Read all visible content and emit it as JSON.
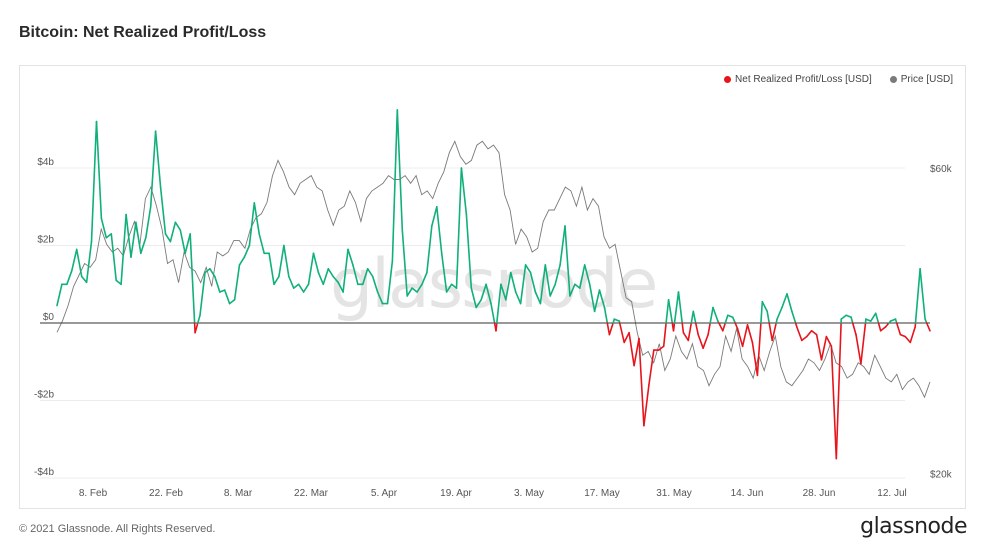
{
  "title": "Bitcoin: Net Realized Profit/Loss",
  "legend": {
    "series1": "Net Realized Profit/Loss [USD]",
    "series2": "Price [USD]"
  },
  "colors": {
    "profit": "#10b07a",
    "loss": "#e8141c",
    "price": "#7a7a7a",
    "zero_line": "#333333",
    "grid": "#ececec"
  },
  "watermark": "glassnode",
  "footer": {
    "copyright": "© 2021 Glassnode. All Rights Reserved.",
    "logo": "glassnode"
  },
  "chart_data": {
    "type": "line",
    "x_tick_labels": [
      "8. Feb",
      "22. Feb",
      "8. Mar",
      "22. Mar",
      "5. Apr",
      "19. Apr",
      "3. May",
      "17. May",
      "31. May",
      "14. Jun",
      "28. Jun",
      "12. Jul"
    ],
    "y_left_ticks": [
      "$4b",
      "$2b",
      "$0",
      "-$2b",
      "-$4b"
    ],
    "y_left_values": [
      4,
      2,
      0,
      -2,
      -4
    ],
    "y_left_range": [
      -4,
      5.6
    ],
    "y_right_ticks": [
      "$60k",
      "$20k"
    ],
    "y_right_values": [
      60000,
      20000
    ],
    "y_right_range": [
      20000,
      70000
    ],
    "x_range_days": [
      0,
      164
    ],
    "series": [
      {
        "name": "Net Realized Profit/Loss [USD]",
        "unit": "billion USD",
        "values": [
          0.45,
          1.0,
          1.0,
          1.35,
          1.9,
          1.2,
          1.05,
          2.1,
          5.2,
          2.7,
          2.2,
          2.3,
          1.1,
          1.0,
          2.8,
          1.7,
          2.6,
          1.8,
          2.2,
          3.0,
          4.95,
          3.5,
          2.3,
          2.1,
          2.6,
          2.4,
          1.8,
          2.3,
          -0.25,
          0.2,
          1.3,
          1.4,
          1.2,
          0.8,
          0.85,
          0.5,
          0.6,
          1.5,
          1.7,
          2.0,
          3.1,
          2.3,
          1.8,
          1.8,
          1.0,
          1.2,
          2.0,
          1.2,
          0.9,
          1.0,
          0.8,
          1.0,
          1.8,
          1.3,
          1.0,
          1.4,
          1.2,
          1.05,
          0.8,
          1.9,
          1.5,
          1.0,
          1.0,
          1.4,
          1.2,
          0.8,
          0.5,
          0.5,
          1.6,
          5.5,
          2.4,
          0.7,
          0.9,
          0.8,
          1.0,
          1.3,
          2.5,
          3.0,
          1.8,
          0.8,
          1.0,
          0.9,
          4.0,
          2.8,
          0.9,
          0.4,
          0.6,
          1.0,
          0.5,
          -0.2,
          1.0,
          0.6,
          1.3,
          0.8,
          0.5,
          1.5,
          1.3,
          0.8,
          0.5,
          1.5,
          0.7,
          1.0,
          1.5,
          2.5,
          0.7,
          1.0,
          0.9,
          1.5,
          1.0,
          0.3,
          0.85,
          0.4,
          -0.3,
          0.1,
          0.05,
          -0.5,
          -0.25,
          -1.1,
          -0.4,
          -2.65,
          -1.6,
          -0.7,
          -0.7,
          -0.6,
          0.6,
          -0.2,
          0.8,
          -0.25,
          -0.45,
          0.3,
          -0.3,
          -0.65,
          -0.3,
          0.4,
          0.05,
          -0.2,
          0.2,
          0.15,
          -0.15,
          -0.6,
          -0.05,
          -0.5,
          -1.35,
          0.55,
          0.3,
          -0.45,
          0.1,
          0.4,
          0.75,
          0.3,
          -0.1,
          -0.45,
          -0.35,
          -0.2,
          -0.3,
          -0.95,
          -0.35,
          -0.6,
          -3.5,
          0.1,
          0.2,
          0.15,
          -0.3,
          -1.05,
          0.1,
          0.05,
          0.25,
          -0.2,
          -0.1,
          0.05,
          0.1,
          -0.3,
          -0.35,
          -0.5,
          -0.1,
          1.4,
          0.1,
          -0.2
        ]
      },
      {
        "name": "Price [USD]",
        "unit": "USD",
        "values": [
          38500,
          40000,
          42000,
          44500,
          46000,
          47500,
          47000,
          48000,
          52000,
          50000,
          49000,
          49500,
          48500,
          51000,
          53000,
          50000,
          56000,
          57500,
          55000,
          52000,
          47500,
          48000,
          45000,
          49000,
          47000,
          46500,
          45000,
          47000,
          44500,
          49000,
          48500,
          49000,
          50500,
          50500,
          49500,
          52000,
          53500,
          54000,
          55500,
          59000,
          61000,
          59500,
          57500,
          56500,
          58000,
          58500,
          59000,
          57500,
          57000,
          54500,
          52500,
          54500,
          55000,
          57000,
          55500,
          53000,
          56000,
          57000,
          57500,
          58000,
          59000,
          58500,
          58500,
          59000,
          58000,
          59000,
          56500,
          57000,
          56000,
          58000,
          59500,
          62000,
          63500,
          61500,
          60500,
          61000,
          63000,
          63500,
          62500,
          63000,
          62000,
          56500,
          54500,
          50000,
          52000,
          51000,
          49000,
          49500,
          53000,
          54500,
          54500,
          56000,
          57500,
          57000,
          55000,
          57500,
          54500,
          56000,
          55000,
          51000,
          49500,
          50000,
          46500,
          43000,
          42500,
          38500,
          35500,
          36000,
          34500,
          37000,
          33500,
          35000,
          38000,
          36000,
          35000,
          37000,
          34000,
          33500,
          31500,
          33000,
          34000,
          38000,
          36000,
          39000,
          35000,
          34000,
          32500,
          35500,
          33500,
          36000,
          38000,
          34000,
          32000,
          31500,
          32500,
          33500,
          35000,
          34500,
          33500,
          35000,
          37000,
          34500,
          34000,
          32500,
          33000,
          34500,
          34000,
          33000,
          35500,
          34000,
          32500,
          32000,
          33000,
          31000,
          32000,
          32500,
          31500,
          30000,
          32000
        ]
      }
    ]
  }
}
